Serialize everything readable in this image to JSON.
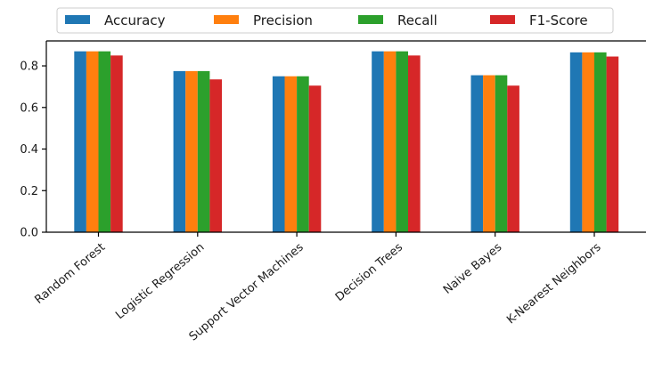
{
  "chart_data": {
    "type": "bar",
    "title": "",
    "xlabel": "",
    "ylabel": "",
    "ylim": [
      0,
      0.92
    ],
    "yticks": [
      0.0,
      0.2,
      0.4,
      0.6,
      0.8
    ],
    "ytick_labels": [
      "0.0",
      "0.2",
      "0.4",
      "0.6",
      "0.8"
    ],
    "grid": false,
    "legend_position": "top",
    "categories": [
      "Random Forest",
      "Logistic Regression",
      "Support Vector Machines",
      "Decision Trees",
      "Naive Bayes",
      "K-Nearest Neighbors"
    ],
    "series": [
      {
        "name": "Accuracy",
        "color": "#1f77b4",
        "values": [
          0.87,
          0.775,
          0.75,
          0.87,
          0.755,
          0.865
        ]
      },
      {
        "name": "Precision",
        "color": "#ff7f0e",
        "values": [
          0.87,
          0.775,
          0.75,
          0.87,
          0.755,
          0.865
        ]
      },
      {
        "name": "Recall",
        "color": "#2ca02c",
        "values": [
          0.87,
          0.775,
          0.75,
          0.87,
          0.755,
          0.865
        ]
      },
      {
        "name": "F1-Score",
        "color": "#d62728",
        "values": [
          0.85,
          0.735,
          0.705,
          0.85,
          0.705,
          0.845
        ]
      }
    ]
  }
}
